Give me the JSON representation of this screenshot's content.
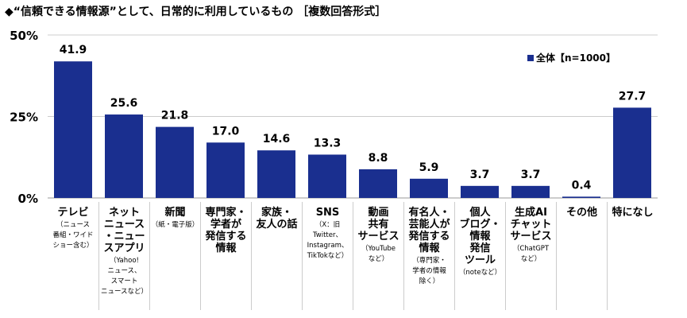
{
  "title": "◆“信頼できる情報源”として、日常的に利用しているもの ［複数回答形式］",
  "legend": "全体【n=1000】",
  "colors": {
    "bar": "#1a2f8f",
    "grid": "#cccccc"
  },
  "chart_data": {
    "type": "bar",
    "title": "“信頼できる情報源”として、日常的に利用しているもの ［複数回答形式］",
    "ylim": [
      0,
      50
    ],
    "yticks": [
      "0%",
      "25%",
      "50%"
    ],
    "ytick_values": [
      0,
      25,
      50
    ],
    "legend_placement": "top-right",
    "series": [
      {
        "name": "全体【n=1000】",
        "values": [
          41.9,
          25.6,
          21.8,
          17.0,
          14.6,
          13.3,
          8.8,
          5.9,
          3.7,
          3.7,
          0.4,
          27.7
        ]
      }
    ],
    "value_labels": [
      "41.9",
      "25.6",
      "21.8",
      "17.0",
      "14.6",
      "13.3",
      "8.8",
      "5.9",
      "3.7",
      "3.7",
      "0.4",
      "27.7"
    ],
    "categories": [
      {
        "main": "テレビ",
        "sub": "（ニュース\n番組・ワイド\nショー含む）"
      },
      {
        "main": "ネット\nニュース\n・ニュー\nスアプリ",
        "sub": "（Yahoo!\nニュース、\nスマート\nニュースなど）"
      },
      {
        "main": "新聞",
        "sub": "（紙・電子版）"
      },
      {
        "main": "専門家・\n学者が\n発信する\n情報",
        "sub": ""
      },
      {
        "main": "家族・\n友人の話",
        "sub": ""
      },
      {
        "main": "SNS",
        "sub": "（X：旧\nTwitter、\nInstagram、\nTikTokなど）"
      },
      {
        "main": "動画\n共有\nサービス",
        "sub": "（YouTube\nなど）"
      },
      {
        "main": "有名人・\n芸能人が\n発信する\n情報",
        "sub": "（専門家・\n学者の情報\n除く）"
      },
      {
        "main": "個人\nブログ・\n情報\n発信\nツール",
        "sub": "（noteなど）"
      },
      {
        "main": "生成AI\nチャット\nサービス",
        "sub": "（ChatGPT\nなど）"
      },
      {
        "main": "その他",
        "sub": ""
      },
      {
        "main": "特になし",
        "sub": ""
      }
    ]
  }
}
